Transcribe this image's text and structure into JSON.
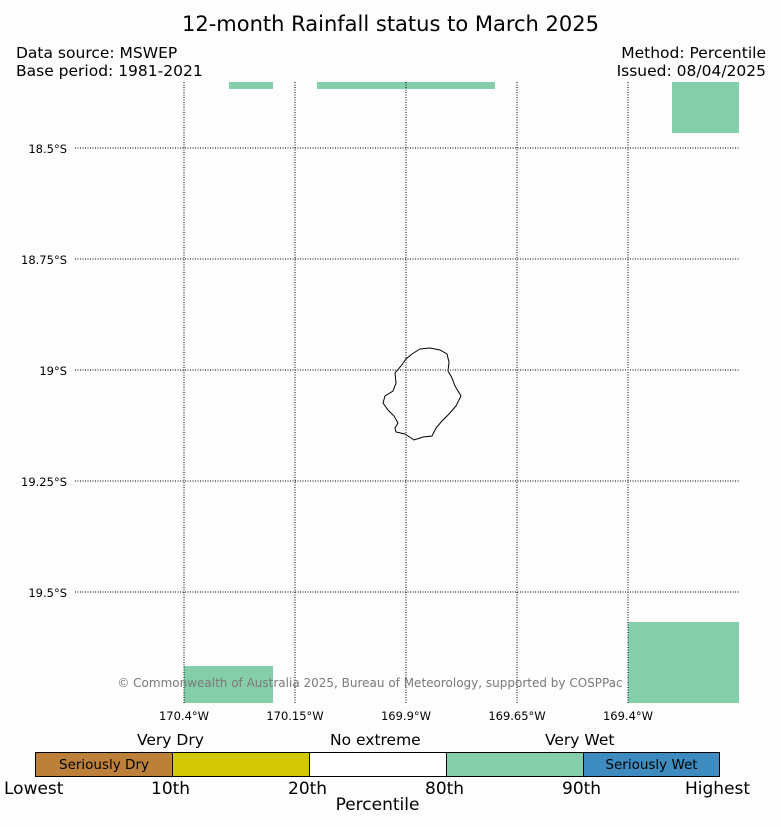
{
  "title": "12-month Rainfall status to March 2025",
  "header": {
    "data_source": "Data source: MSWEP",
    "base_period": "Base period: 1981-2021",
    "method": "Method: Percentile",
    "issued": "Issued: 08/04/2025"
  },
  "map": {
    "lat_labels": [
      "18.5°S",
      "18.75°S",
      "19°S",
      "19.25°S",
      "19.5°S"
    ],
    "lon_labels": [
      "170.4°W",
      "170.15°W",
      "169.9°W",
      "169.65°W",
      "169.4°W"
    ],
    "feature": "Niue island outline",
    "copyright": "© Commonwealth of Australia 2025, Bureau of Meteorology, supported by COSPPac",
    "very_wet_color": "#85ceaa"
  },
  "legend": {
    "group_labels": {
      "very_dry": "Very Dry",
      "no_extreme": "No extreme",
      "very_wet": "Very Wet"
    },
    "segments": [
      {
        "label": "Seriously Dry",
        "color": "#bd803b"
      },
      {
        "label": "",
        "color": "#d2c805"
      },
      {
        "label": "",
        "color": "#ffffff"
      },
      {
        "label": "",
        "color": "#85ceaa"
      },
      {
        "label": "Seriously Wet",
        "color": "#3e8bbf"
      }
    ],
    "ticks": [
      "Lowest",
      "10th",
      "20th",
      "80th",
      "90th",
      "Highest"
    ],
    "xlabel": "Percentile"
  }
}
